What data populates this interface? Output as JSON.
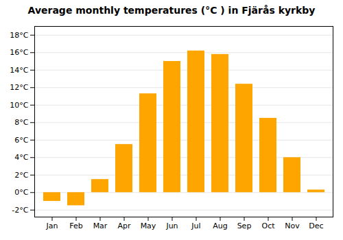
{
  "chart_data": {
    "type": "bar",
    "title": "Average monthly temperatures (°C ) in Fjärås kyrkby",
    "categories": [
      "Jan",
      "Feb",
      "Mar",
      "Apr",
      "May",
      "Jun",
      "Jul",
      "Aug",
      "Sep",
      "Oct",
      "Nov",
      "Dec"
    ],
    "values": [
      -1.0,
      -1.5,
      1.5,
      5.5,
      11.3,
      15.0,
      16.2,
      15.8,
      12.4,
      8.5,
      4.0,
      0.3
    ],
    "color": "#FFA500",
    "ylim": [
      -2.8,
      19.0
    ],
    "yticks": [
      {
        "value": -2,
        "label": "-2°C"
      },
      {
        "value": 0,
        "label": "0°C"
      },
      {
        "value": 2,
        "label": "2°C"
      },
      {
        "value": 4,
        "label": "4°C"
      },
      {
        "value": 6,
        "label": "6°C"
      },
      {
        "value": 8,
        "label": "8°C"
      },
      {
        "value": 10,
        "label": "10°C"
      },
      {
        "value": 12,
        "label": "12°C"
      },
      {
        "value": 14,
        "label": "14°C"
      },
      {
        "value": 16,
        "label": "16°C"
      },
      {
        "value": 18,
        "label": "18°C"
      }
    ],
    "grid": true
  }
}
